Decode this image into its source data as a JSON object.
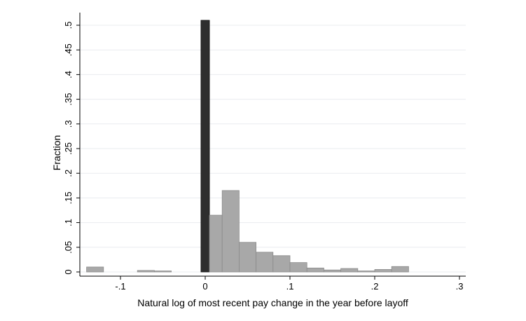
{
  "chart_data": {
    "type": "bar",
    "title": "",
    "xlabel": "Natural log of most recent pay change in the year before layoff",
    "ylabel": "Fraction",
    "xlim": [
      -0.14,
      0.31
    ],
    "ylim": [
      0,
      0.53
    ],
    "x_ticks": [
      {
        "value": -0.1,
        "label": "-.1"
      },
      {
        "value": 0,
        "label": "0"
      },
      {
        "value": 0.1,
        "label": ".1"
      },
      {
        "value": 0.2,
        "label": ".2"
      },
      {
        "value": 0.3,
        "label": ".3"
      }
    ],
    "y_ticks": [
      {
        "value": 0,
        "label": "0"
      },
      {
        "value": 0.05,
        "label": ".05"
      },
      {
        "value": 0.1,
        "label": ".1"
      },
      {
        "value": 0.15,
        "label": ".15"
      },
      {
        "value": 0.2,
        "label": ".2"
      },
      {
        "value": 0.25,
        "label": ".25"
      },
      {
        "value": 0.3,
        "label": ".3"
      },
      {
        "value": 0.35,
        "label": ".35"
      },
      {
        "value": 0.4,
        "label": ".4"
      },
      {
        "value": 0.45,
        "label": ".45"
      },
      {
        "value": 0.5,
        "label": ".5"
      }
    ],
    "grid": true,
    "bin_width": 0.02,
    "bars": [
      {
        "x0": -0.14,
        "x1": -0.12,
        "value": 0.01,
        "highlight": false
      },
      {
        "x0": -0.08,
        "x1": -0.06,
        "value": 0.003,
        "highlight": false
      },
      {
        "x0": -0.06,
        "x1": -0.04,
        "value": 0.002,
        "highlight": false
      },
      {
        "x0": -0.005,
        "x1": 0.005,
        "value": 0.51,
        "highlight": true
      },
      {
        "x0": 0.005,
        "x1": 0.02,
        "value": 0.115,
        "highlight": false
      },
      {
        "x0": 0.02,
        "x1": 0.04,
        "value": 0.165,
        "highlight": false
      },
      {
        "x0": 0.04,
        "x1": 0.06,
        "value": 0.06,
        "highlight": false
      },
      {
        "x0": 0.06,
        "x1": 0.08,
        "value": 0.04,
        "highlight": false
      },
      {
        "x0": 0.08,
        "x1": 0.1,
        "value": 0.033,
        "highlight": false
      },
      {
        "x0": 0.1,
        "x1": 0.12,
        "value": 0.019,
        "highlight": false
      },
      {
        "x0": 0.12,
        "x1": 0.14,
        "value": 0.008,
        "highlight": false
      },
      {
        "x0": 0.14,
        "x1": 0.16,
        "value": 0.004,
        "highlight": false
      },
      {
        "x0": 0.16,
        "x1": 0.18,
        "value": 0.007,
        "highlight": false
      },
      {
        "x0": 0.18,
        "x1": 0.2,
        "value": 0.002,
        "highlight": false
      },
      {
        "x0": 0.2,
        "x1": 0.22,
        "value": 0.005,
        "highlight": false
      },
      {
        "x0": 0.22,
        "x1": 0.24,
        "value": 0.011,
        "highlight": false
      }
    ],
    "colors": {
      "bar": "#a8a8a8",
      "bar_edge": "#8a8a8a",
      "highlight": "#2e2e2e",
      "grid": "#e9ecef"
    }
  }
}
